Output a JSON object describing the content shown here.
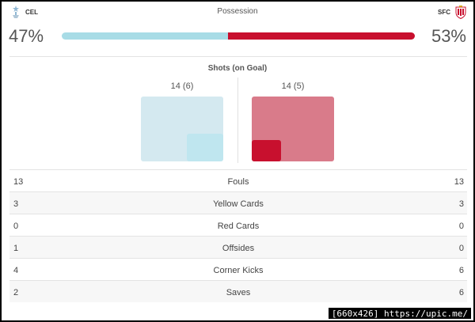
{
  "colors": {
    "home": "#a8dce6",
    "home_light": "#d4e9f0",
    "home_on_target": "#bfe6ef",
    "away": "#c8102e",
    "away_light": "#d97b8a",
    "away_on_target": "#c8102e",
    "away_crest": "#c8102e"
  },
  "header": {
    "home_team": "CEL",
    "away_team": "SFC",
    "title": "Possession",
    "home_pct": "47%",
    "away_pct": "53%",
    "home_fraction": 0.47,
    "away_fraction": 0.53
  },
  "icons": {
    "home_crest": "celta-crest-icon",
    "away_crest": "sevilla-crest-icon"
  },
  "shots": {
    "title": "Shots (on Goal)",
    "home_label": "14 (6)",
    "away_label": "14 (5)",
    "home_total": 14,
    "home_on_goal": 6,
    "away_total": 14,
    "away_on_goal": 5
  },
  "stats": [
    {
      "label": "Fouls",
      "home": "13",
      "away": "13"
    },
    {
      "label": "Yellow Cards",
      "home": "3",
      "away": "3"
    },
    {
      "label": "Red Cards",
      "home": "0",
      "away": "0"
    },
    {
      "label": "Offsides",
      "home": "1",
      "away": "0"
    },
    {
      "label": "Corner Kicks",
      "home": "4",
      "away": "6"
    },
    {
      "label": "Saves",
      "home": "2",
      "away": "6"
    }
  ],
  "watermark": "[660x426] https://upic.me/"
}
